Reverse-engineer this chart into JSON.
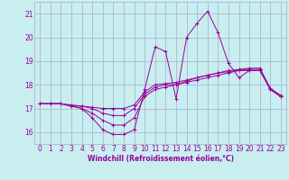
{
  "title": "",
  "xlabel": "Windchill (Refroidissement éolien,°C)",
  "ylabel": "",
  "background_color": "#c8eef0",
  "grid_color": "#aaaacc",
  "line_color": "#990099",
  "xlim": [
    -0.5,
    23.5
  ],
  "ylim": [
    15.5,
    21.5
  ],
  "yticks": [
    16,
    17,
    18,
    19,
    20,
    21
  ],
  "xticks": [
    0,
    1,
    2,
    3,
    4,
    5,
    6,
    7,
    8,
    9,
    10,
    11,
    12,
    13,
    14,
    15,
    16,
    17,
    18,
    19,
    20,
    21,
    22,
    23
  ],
  "series": [
    [
      17.2,
      17.2,
      17.2,
      17.1,
      17.0,
      16.6,
      16.1,
      15.9,
      15.9,
      16.1,
      17.8,
      19.6,
      19.4,
      17.4,
      20.0,
      20.6,
      21.1,
      20.2,
      18.9,
      18.3,
      18.6,
      18.6,
      17.8,
      17.5
    ],
    [
      17.2,
      17.2,
      17.2,
      17.1,
      17.0,
      16.8,
      16.5,
      16.3,
      16.3,
      16.6,
      17.5,
      17.8,
      17.9,
      18.0,
      18.1,
      18.2,
      18.3,
      18.4,
      18.5,
      18.6,
      18.6,
      18.6,
      17.8,
      17.5
    ],
    [
      17.2,
      17.2,
      17.2,
      17.1,
      17.1,
      17.0,
      16.8,
      16.7,
      16.7,
      17.0,
      17.6,
      17.9,
      18.0,
      18.0,
      18.15,
      18.3,
      18.4,
      18.5,
      18.55,
      18.6,
      18.65,
      18.65,
      17.8,
      17.5
    ],
    [
      17.2,
      17.2,
      17.2,
      17.15,
      17.1,
      17.05,
      17.0,
      17.0,
      17.0,
      17.15,
      17.7,
      18.0,
      18.05,
      18.1,
      18.2,
      18.3,
      18.4,
      18.5,
      18.6,
      18.65,
      18.7,
      18.7,
      17.85,
      17.55
    ]
  ]
}
